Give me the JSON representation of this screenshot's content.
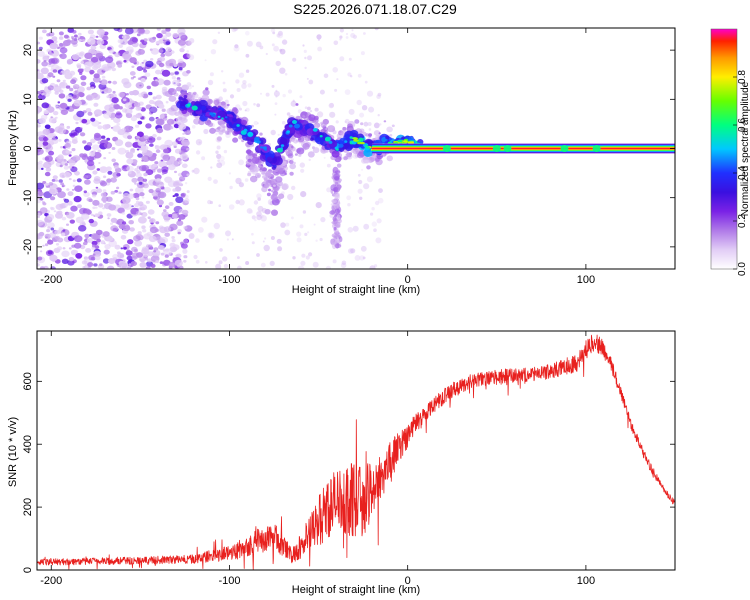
{
  "title": "S225.2026.071.18.07.C29",
  "chart_data": [
    {
      "type": "heatmap",
      "name": "spectrogram",
      "xlabel": "Height of straight line (km)",
      "ylabel": "Frequency (Hz)",
      "xlim": [
        -208,
        150
      ],
      "ylim": [
        -24.5,
        24.5
      ],
      "x_ticks": [
        -200,
        -100,
        0,
        100
      ],
      "x_tick_labels": [
        "-200",
        "-100",
        "0",
        "100"
      ],
      "y_ticks": [
        20,
        10,
        0,
        -10,
        -20
      ],
      "y_tick_labels": [
        "20",
        "10",
        "0",
        "-10",
        "-20"
      ],
      "ridge": {
        "description_points_km_hz": [
          [
            -125,
            9
          ],
          [
            -100,
            6
          ],
          [
            -85,
            2
          ],
          [
            -75,
            -3
          ],
          [
            -65,
            5
          ],
          [
            -50,
            3
          ],
          [
            -40,
            0
          ],
          [
            -30,
            2
          ],
          [
            -20,
            0
          ],
          [
            0,
            1.5
          ],
          [
            10,
            0
          ],
          [
            150,
            0
          ]
        ],
        "tone_frequency_hz": 0,
        "tone_start_km": -20,
        "tone_end_km": 150
      },
      "colorbar": {
        "label": "Normalized spectral amplitude",
        "range": [
          0,
          1
        ],
        "ticks": [
          0.0,
          0.2,
          0.4,
          0.6,
          0.8
        ],
        "tick_labels": [
          "0.0",
          "0.2",
          "0.4",
          "0.6",
          "0.8"
        ],
        "stops": [
          [
            0.0,
            "#ffffff"
          ],
          [
            0.08,
            "#e2cdf6"
          ],
          [
            0.16,
            "#b07ae8"
          ],
          [
            0.24,
            "#7a22e6"
          ],
          [
            0.32,
            "#3a10e0"
          ],
          [
            0.4,
            "#2030ff"
          ],
          [
            0.5,
            "#00c8ff"
          ],
          [
            0.6,
            "#00ff80"
          ],
          [
            0.7,
            "#66ff00"
          ],
          [
            0.8,
            "#ffee00"
          ],
          [
            0.88,
            "#ff9900"
          ],
          [
            0.95,
            "#ff2000"
          ],
          [
            1.0,
            "#ff00cc"
          ]
        ]
      }
    },
    {
      "type": "line",
      "name": "snr",
      "xlabel": "Height of straight line (km)",
      "ylabel": "SNR (10 * v/v)",
      "xlim": [
        -208,
        150
      ],
      "ylim": [
        0,
        760
      ],
      "x_ticks": [
        -200,
        -100,
        0,
        100
      ],
      "x_tick_labels": [
        "-200",
        "-100",
        "0",
        "100"
      ],
      "y_ticks": [
        0,
        200,
        400,
        600
      ],
      "y_tick_labels": [
        "0",
        "200",
        "400",
        "600"
      ],
      "color": "#e8201e",
      "envelope_x": [
        -208,
        -150,
        -120,
        -100,
        -85,
        -75,
        -65,
        -55,
        -45,
        -35,
        -25,
        -15,
        -5,
        5,
        15,
        25,
        35,
        45,
        55,
        65,
        75,
        85,
        95,
        100,
        105,
        110,
        115,
        120,
        125,
        130,
        135,
        140,
        145,
        150
      ],
      "envelope_y": [
        25,
        30,
        35,
        55,
        90,
        110,
        45,
        110,
        200,
        230,
        215,
        300,
        390,
        470,
        530,
        570,
        600,
        610,
        615,
        620,
        625,
        640,
        660,
        700,
        730,
        700,
        640,
        560,
        470,
        400,
        340,
        290,
        245,
        210
      ],
      "envelope_noise": [
        10,
        12,
        14,
        25,
        40,
        45,
        25,
        60,
        100,
        120,
        110,
        80,
        50,
        30,
        25,
        25,
        22,
        22,
        25,
        22,
        22,
        25,
        30,
        30,
        30,
        28,
        25,
        20,
        18,
        15,
        15,
        12,
        10,
        10
      ]
    }
  ]
}
